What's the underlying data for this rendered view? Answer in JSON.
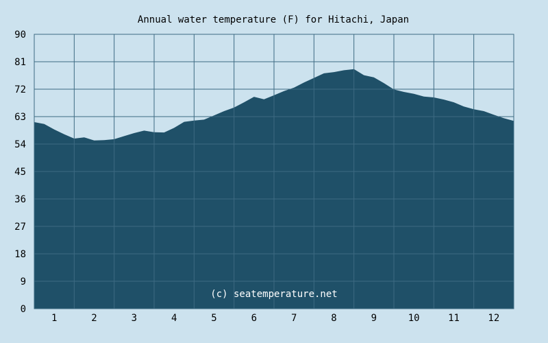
{
  "chart_data": {
    "type": "area",
    "title": "Annual water temperature (F) for Hitachi, Japan",
    "watermark": "(c) seatemperature.net",
    "x_tick_labels": [
      "1",
      "2",
      "3",
      "4",
      "5",
      "6",
      "7",
      "8",
      "9",
      "10",
      "11",
      "12"
    ],
    "y_tick_labels": [
      "0",
      "9",
      "18",
      "27",
      "36",
      "45",
      "54",
      "63",
      "72",
      "81",
      "90"
    ],
    "ylim": [
      0,
      90
    ],
    "grid": true,
    "colors": {
      "background": "#cce2ee",
      "fill": "#1f5068",
      "grid": "#3d6a82",
      "axis": "#000000"
    },
    "series": [
      {
        "x": [
          0.5,
          0.75,
          1.0,
          1.25,
          1.5,
          1.75,
          2.0,
          2.25,
          2.5,
          2.75,
          3.0,
          3.25,
          3.5,
          3.75,
          4.0,
          4.25,
          4.5,
          4.75,
          5.0,
          5.25,
          5.5,
          5.75,
          6.0,
          6.25,
          6.5,
          6.75,
          7.0,
          7.25,
          7.5,
          7.75,
          8.0,
          8.25,
          8.5,
          8.75,
          9.0,
          9.25,
          9.5,
          9.75,
          10.0,
          10.25,
          10.5,
          10.75,
          11.0,
          11.25,
          11.5,
          11.75,
          12.0,
          12.25,
          12.5
        ],
        "values": [
          61.2,
          60.6,
          58.8,
          57.2,
          55.8,
          56.2,
          55.2,
          55.3,
          55.6,
          56.6,
          57.6,
          58.4,
          57.9,
          57.8,
          59.3,
          61.3,
          61.7,
          62.0,
          63.4,
          64.8,
          66.0,
          67.7,
          69.5,
          68.7,
          70.0,
          71.4,
          72.5,
          74.2,
          75.7,
          77.2,
          77.6,
          78.2,
          78.6,
          76.6,
          75.9,
          74.0,
          71.9,
          71.1,
          70.5,
          69.6,
          69.3,
          68.6,
          67.7,
          66.3,
          65.4,
          64.8,
          63.6,
          62.5,
          61.6
        ]
      }
    ]
  }
}
